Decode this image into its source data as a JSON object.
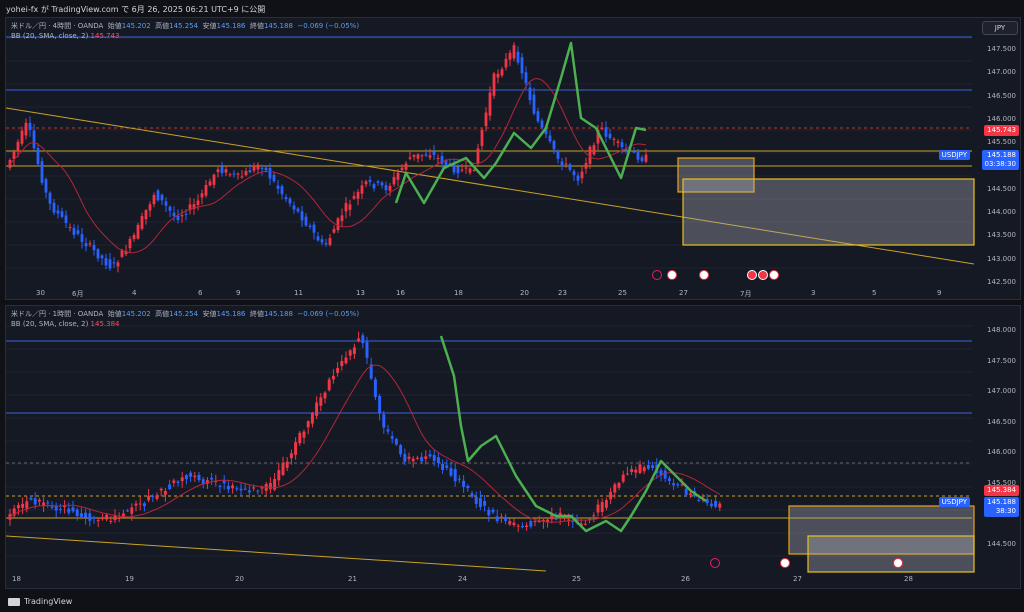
{
  "topbar": {
    "text": "yohei-fx が TradingView.com で 6月 26, 2025 06:21 UTC+9 に公開"
  },
  "pane1": {
    "title": "米ドル／円 · 4時間 · OANDA",
    "open_label": "始値",
    "open": "145.202",
    "high_label": "高値",
    "high": "145.254",
    "low_label": "安値",
    "low": "145.186",
    "close_label": "終値",
    "close": "145.188",
    "change": "−0.069 (−0.05%)",
    "bb_label": "BB (20, SMA, close, 2)",
    "bb_value": "145.743",
    "currency": "JPY",
    "y_ticks": [
      "147.500",
      "147.000",
      "146.500",
      "146.000",
      "145.500",
      "145.000",
      "144.500",
      "144.000",
      "143.500",
      "143.000",
      "142.500"
    ],
    "bb_tag": "145.743",
    "symbol_tag": "USDJPY",
    "price_tag": "145.188",
    "timer_tag": "03:38:30",
    "x_ticks": [
      "30",
      "6月",
      "4",
      "6",
      "9",
      "11",
      "13",
      "16",
      "18",
      "20",
      "23",
      "25",
      "27",
      "7月",
      "3",
      "5",
      "9"
    ]
  },
  "pane2": {
    "title": "米ドル／円 · 1時間 · OANDA",
    "open_label": "始値",
    "open": "145.202",
    "high_label": "高値",
    "high": "145.254",
    "low_label": "安値",
    "low": "145.186",
    "close_label": "終値",
    "close": "145.188",
    "change": "−0.069 (−0.05%)",
    "bb_label": "BB (20, SMA, close, 2)",
    "bb_value": "145.384",
    "currency": "JPY",
    "y_ticks": [
      "148.000",
      "147.500",
      "147.000",
      "146.500",
      "146.000",
      "145.500",
      "145.000",
      "144.500"
    ],
    "bb_tag": "145.384",
    "symbol_tag": "USDJPY",
    "price_tag": "145.188",
    "timer_tag": "38:30",
    "x_ticks": [
      "18",
      "19",
      "20",
      "21",
      "24",
      "25",
      "26",
      "27",
      "28"
    ]
  },
  "footer": {
    "brand": "TradingView"
  },
  "colors": {
    "up": "#f23645",
    "down": "#2962ff",
    "bb": "#b2263a",
    "wave": "#4caf50",
    "trend": "#c9a227",
    "hline": "#3a63d8"
  }
}
